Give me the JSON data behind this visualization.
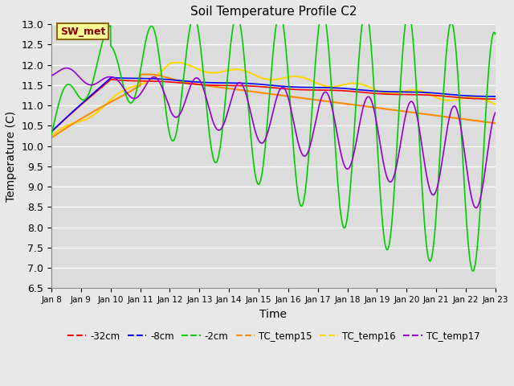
{
  "title": "Soil Temperature Profile C2",
  "xlabel": "Time",
  "ylabel": "Temperature (C)",
  "ylim": [
    6.5,
    13.0
  ],
  "yticks": [
    6.5,
    7.0,
    7.5,
    8.0,
    8.5,
    9.0,
    9.5,
    10.0,
    10.5,
    11.0,
    11.5,
    12.0,
    12.5,
    13.0
  ],
  "x_labels": [
    "Jan 8",
    "Jan 9",
    "Jan 10",
    "Jan 11",
    "Jan 12",
    "Jan 13",
    "Jan 14",
    "Jan 15",
    "Jan 16",
    "Jan 17",
    "Jan 18",
    "Jan 19",
    "Jan 20",
    "Jan 21",
    "Jan 22",
    "Jan 23"
  ],
  "annotation_text": "SW_met",
  "annotation_color": "#8B0000",
  "annotation_bg": "#FFFF99",
  "annotation_border": "#8B6914",
  "fig_bg_color": "#E8E8E8",
  "plot_bg_color": "#DCDCDC",
  "legend_entries": [
    "-32cm",
    "-8cm",
    "-2cm",
    "TC_temp15",
    "TC_temp16",
    "TC_temp17"
  ],
  "line_colors": [
    "#FF0000",
    "#0000FF",
    "#00CC00",
    "#FF8C00",
    "#FFD700",
    "#9400D3"
  ],
  "grid_color": "#FFFFFF"
}
